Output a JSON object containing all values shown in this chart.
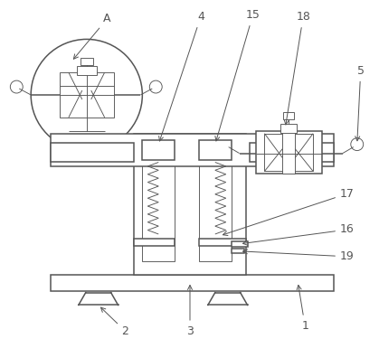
{
  "background_color": "#ffffff",
  "line_color": "#555555",
  "lw": 1.1,
  "tlw": 0.65,
  "figsize": [
    4.19,
    3.75
  ],
  "dpi": 100
}
